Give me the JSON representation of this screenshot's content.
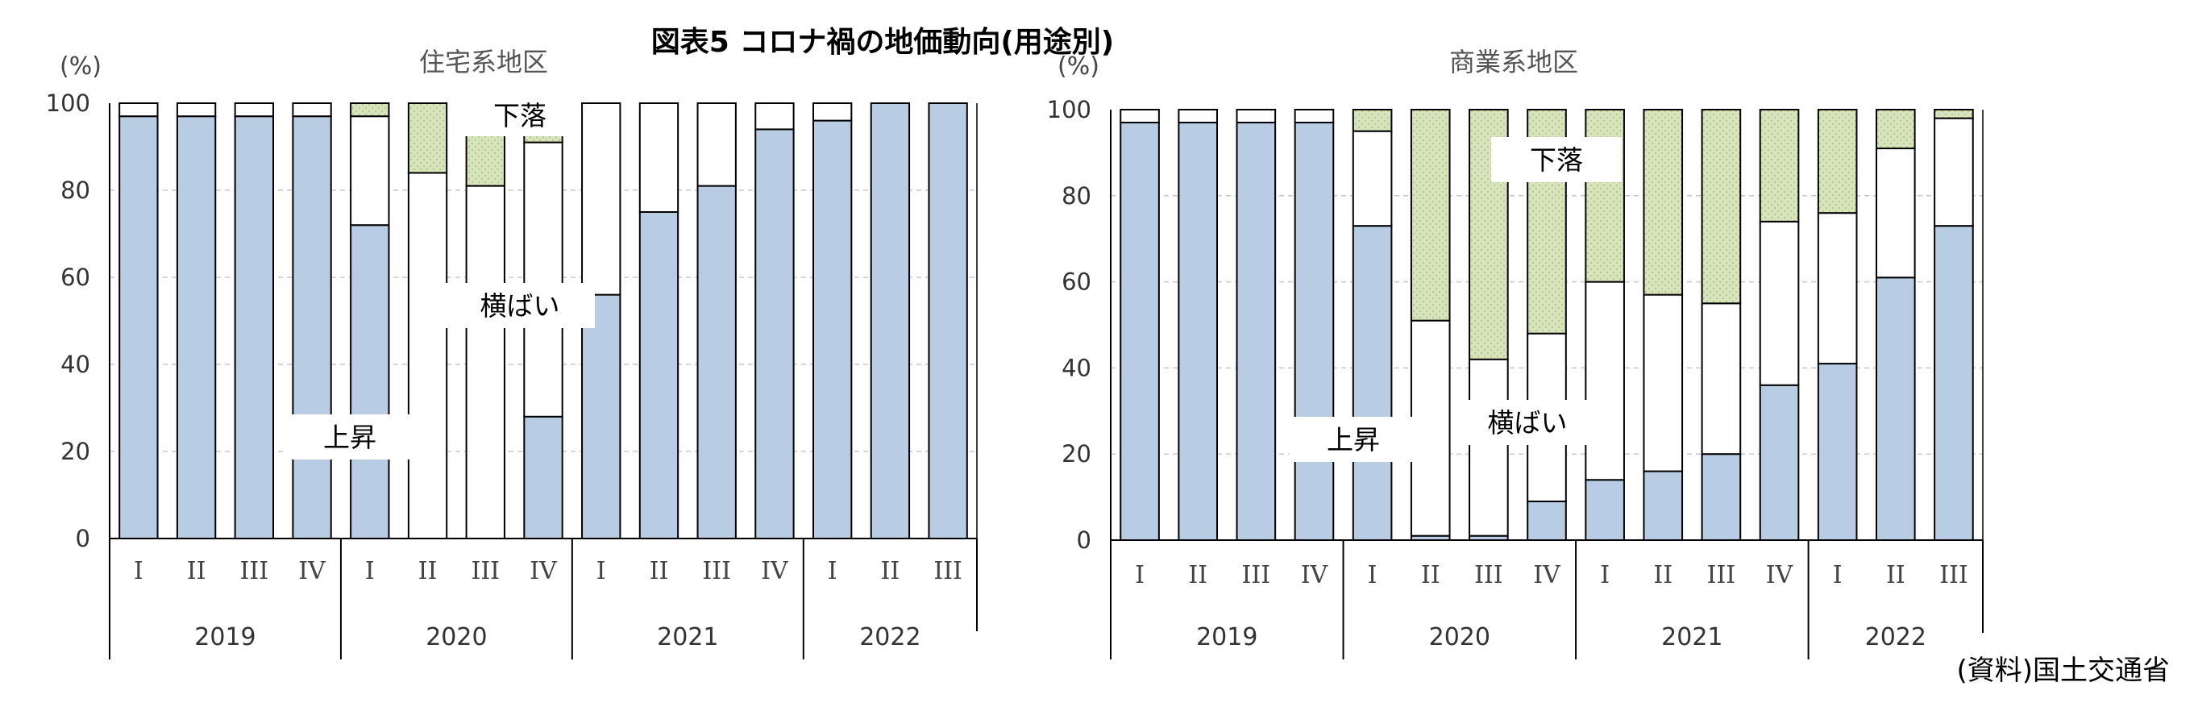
{
  "title": "図表5 コロナ禍の地価動向(用途別)",
  "source": "(資料)国土交通省",
  "colors": {
    "rise": "#b8cce4",
    "flat": "#ffffff",
    "fall": "#d8e4bc",
    "fall_dots": "#b5cc8e",
    "border": "#000000",
    "grid": "#c8c8c8"
  },
  "legend_names": {
    "rise": "上昇",
    "flat": "横ばい",
    "fall": "下落"
  },
  "chart_data": [
    {
      "type": "bar",
      "stacked": true,
      "title": "住宅系地区",
      "ylabel": "(%)",
      "ylim": [
        0,
        100
      ],
      "yticks": [
        0,
        20,
        40,
        60,
        80,
        100
      ],
      "categories": [
        "I",
        "II",
        "III",
        "IV",
        "I",
        "II",
        "III",
        "IV",
        "I",
        "II",
        "III",
        "IV",
        "I",
        "II",
        "III"
      ],
      "years": [
        {
          "label": "2019",
          "count": 4
        },
        {
          "label": "2020",
          "count": 4
        },
        {
          "label": "2021",
          "count": 4
        },
        {
          "label": "2022",
          "count": 3
        }
      ],
      "series": [
        {
          "name": "上昇",
          "values": [
            97,
            97,
            97,
            97,
            72,
            0,
            0,
            28,
            56,
            75,
            81,
            94,
            96,
            100,
            100
          ]
        },
        {
          "name": "横ばい",
          "values": [
            3,
            3,
            3,
            3,
            25,
            84,
            81,
            63,
            44,
            25,
            19,
            6,
            4,
            0,
            0
          ]
        },
        {
          "name": "下落",
          "values": [
            0,
            0,
            0,
            0,
            3,
            16,
            19,
            9,
            0,
            0,
            0,
            0,
            0,
            0,
            0
          ]
        }
      ],
      "annotations": [
        {
          "text": "上昇",
          "series": "rise"
        },
        {
          "text": "横ばい",
          "series": "flat"
        },
        {
          "text": "下落",
          "series": "fall"
        }
      ]
    },
    {
      "type": "bar",
      "stacked": true,
      "title": "商業系地区",
      "ylabel": "(%)",
      "ylim": [
        0,
        100
      ],
      "yticks": [
        0,
        20,
        40,
        60,
        80,
        100
      ],
      "categories": [
        "I",
        "II",
        "III",
        "IV",
        "I",
        "II",
        "III",
        "IV",
        "I",
        "II",
        "III",
        "IV",
        "I",
        "II",
        "III"
      ],
      "years": [
        {
          "label": "2019",
          "count": 4
        },
        {
          "label": "2020",
          "count": 4
        },
        {
          "label": "2021",
          "count": 4
        },
        {
          "label": "2022",
          "count": 3
        }
      ],
      "series": [
        {
          "name": "上昇",
          "values": [
            97,
            97,
            97,
            97,
            73,
            1,
            1,
            9,
            14,
            16,
            20,
            36,
            41,
            61,
            73
          ]
        },
        {
          "name": "横ばい",
          "values": [
            3,
            3,
            3,
            3,
            22,
            50,
            41,
            39,
            46,
            41,
            35,
            38,
            35,
            30,
            25
          ]
        },
        {
          "name": "下落",
          "values": [
            0,
            0,
            0,
            0,
            5,
            49,
            58,
            52,
            40,
            43,
            45,
            26,
            24,
            9,
            2
          ]
        }
      ],
      "annotations": [
        {
          "text": "上昇",
          "series": "rise"
        },
        {
          "text": "横ばい",
          "series": "flat"
        },
        {
          "text": "下落",
          "series": "fall"
        }
      ]
    }
  ]
}
